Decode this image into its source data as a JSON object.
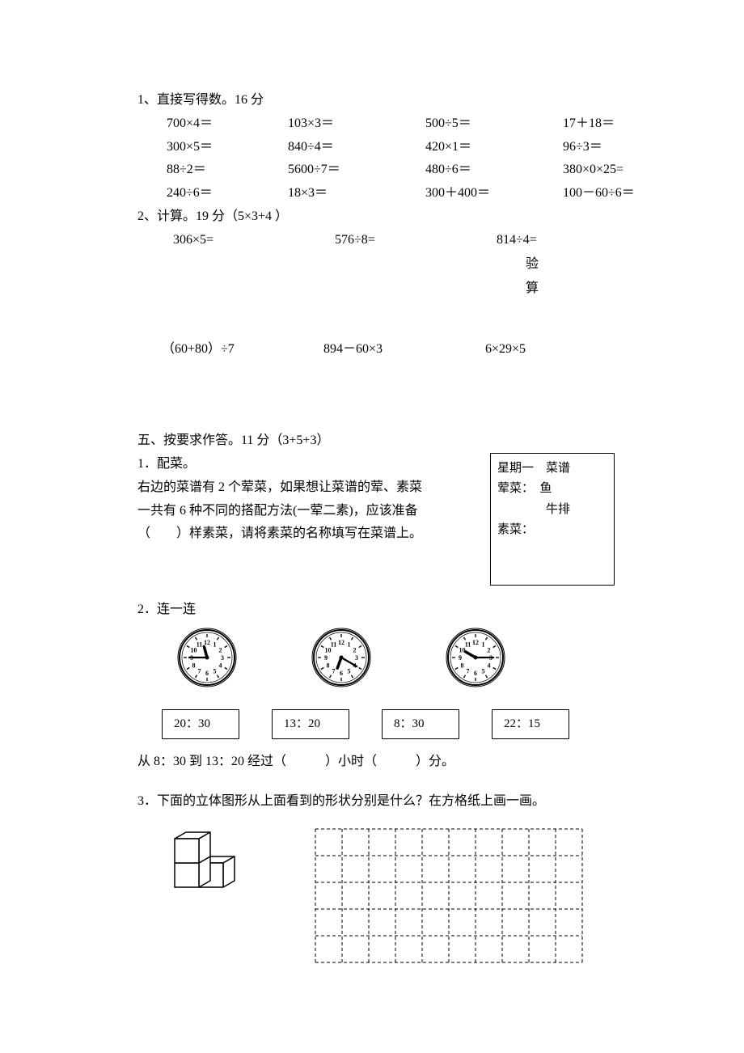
{
  "q1": {
    "title": "1、直接写得数。16 分",
    "rows": [
      [
        "700×4＝",
        "103×3＝",
        "500÷5＝",
        "17＋18＝"
      ],
      [
        "300×5＝",
        "840÷4＝",
        "420×1＝",
        "96÷3＝"
      ],
      [
        "88÷2＝",
        "5600÷7＝",
        "480÷6＝",
        "380×0×25="
      ],
      [
        "240÷6＝",
        "18×3＝",
        "300＋400＝",
        "100－60÷6＝"
      ]
    ]
  },
  "q2calc": {
    "title": "2、计算。19 分（5×3+4 ）",
    "row1": [
      "306×5=",
      "576÷8=",
      "814÷4="
    ],
    "verify1": "验",
    "verify2": "算",
    "row2": [
      "（60+80）÷7",
      "894－60×3",
      "6×29×5"
    ]
  },
  "s5": {
    "title": "五、按要求作答。11 分（3+5+3）",
    "q1": {
      "label": "1．配菜。",
      "line1": "右边的菜谱有 2 个荤菜，如果想让菜谱的荤、素菜",
      "line2": "一共有 6 种不同的搭配方法(一荤二素)，应该准备",
      "line3": "（　　）样素菜，请将素菜的名称填写在菜谱上。",
      "menu": {
        "l1": "星期一　菜谱",
        "l2": "荤菜：　鱼",
        "l3": "　　　　牛排",
        "l4": "素菜："
      }
    },
    "q2": {
      "label": "2．连一连",
      "clocks": [
        {
          "hour_angle": -15,
          "minute_angle": 270
        },
        {
          "hour_angle": 200,
          "minute_angle": 120
        },
        {
          "hour_angle": 300,
          "minute_angle": 90
        }
      ],
      "times": [
        "20：30",
        "13：20",
        "8：30",
        "22：15"
      ],
      "fill": "从 8：30 到 13：20 经过（　　　）小时（　　　）分。"
    },
    "q3": {
      "label": "3．下面的立体图形从上面看到的形状分别是什么？在方格纸上画一画。",
      "grid": {
        "cols": 10,
        "rows": 5,
        "cell": 33
      }
    }
  },
  "style": {
    "clock_face": "#ffffff",
    "clock_stroke": "#000000",
    "grid_dash": "4,3"
  }
}
